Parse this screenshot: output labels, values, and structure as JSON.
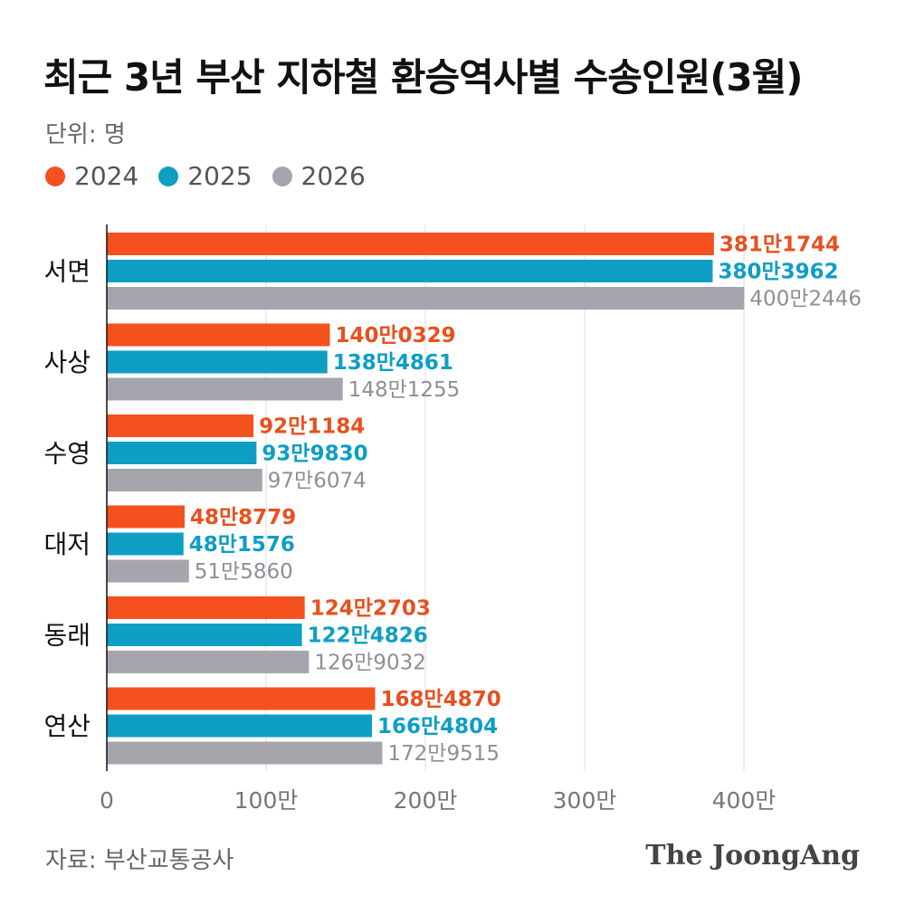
{
  "header": {
    "title": "최근 3년 부산 지하철 환승역사별 수송인원(3월)",
    "unit": "단위: 명"
  },
  "legend": [
    {
      "label": "2024",
      "color": "#F4511E"
    },
    {
      "label": "2025",
      "color": "#0E9EC4"
    },
    {
      "label": "2026",
      "color": "#A5A6AD"
    }
  ],
  "chart_data": {
    "type": "bar",
    "orientation": "horizontal",
    "title": "최근 3년 부산 지하철 환승역사별 수송인원(3월)",
    "unit": "명",
    "categories": [
      "서면",
      "사상",
      "수영",
      "대저",
      "동래",
      "연산"
    ],
    "series": [
      {
        "name": "2024",
        "color": "#F4511E",
        "label_color": "#E8501E",
        "values": [
          3811744,
          1400329,
          921184,
          488779,
          1242703,
          1684870
        ],
        "labels": [
          "381만1744",
          "140만0329",
          "92만1184",
          "48만8779",
          "124만2703",
          "168만4870"
        ]
      },
      {
        "name": "2025",
        "color": "#0E9EC4",
        "label_color": "#0E9EC4",
        "values": [
          3803962,
          1384861,
          939830,
          481576,
          1224826,
          1664804
        ],
        "labels": [
          "380만3962",
          "138만4861",
          "93만9830",
          "48만1576",
          "122만4826",
          "166만4804"
        ]
      },
      {
        "name": "2026",
        "color": "#A5A6AD",
        "label_color": "#8E8F96",
        "values": [
          4002446,
          1481255,
          976074,
          515860,
          1269032,
          1729515
        ],
        "labels": [
          "400만2446",
          "148만1255",
          "97만6074",
          "51만5860",
          "126만9032",
          "172만9515"
        ]
      }
    ],
    "xlim": [
      0,
      4000000
    ],
    "xticks": [
      0,
      1000000,
      2000000,
      3000000,
      4000000
    ],
    "xtick_labels": [
      "0",
      "100만",
      "200만",
      "300만",
      "400만"
    ],
    "grid": true,
    "legend_position": "top-left"
  },
  "footer": {
    "source": "자료: 부산교통공사",
    "logo": "The JoongAng"
  }
}
